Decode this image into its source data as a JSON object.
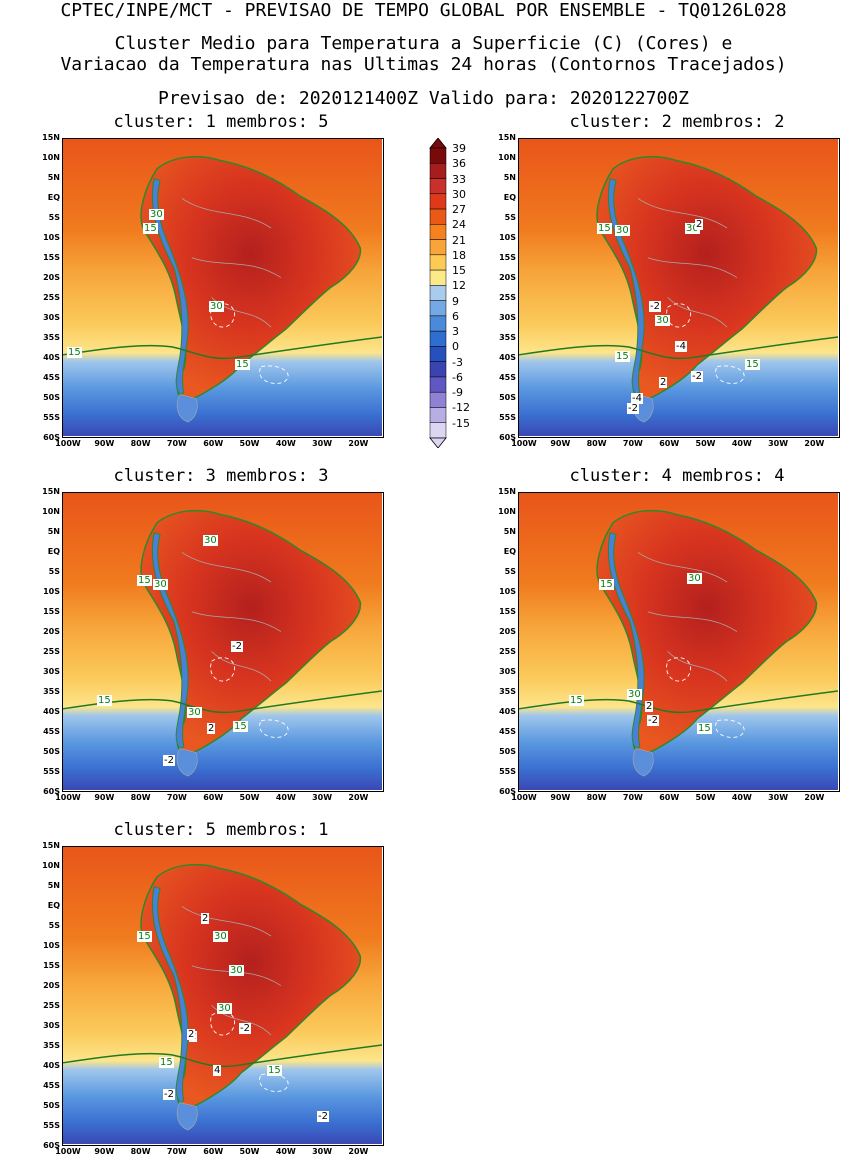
{
  "header": {
    "line1": "CPTEC/INPE/MCT - PREVISAO DE TEMPO GLOBAL POR ENSEMBLE - TQ0126L028",
    "line2": "Cluster Medio para Temperatura a Superficie (C) (Cores) e",
    "line3": "Variacao da Temperatura nas Ultimas 24 horas (Contornos Tracejados)",
    "line4": "Previsao de: 2020121400Z   Valido para: 2020122700Z"
  },
  "lat_ticks": [
    "15N",
    "10N",
    "5N",
    "EQ",
    "5S",
    "10S",
    "15S",
    "20S",
    "25S",
    "30S",
    "35S",
    "40S",
    "45S",
    "50S",
    "55S",
    "60S"
  ],
  "lon_ticks": [
    "100W",
    "90W",
    "80W",
    "70W",
    "60W",
    "50W",
    "40W",
    "30W",
    "20W"
  ],
  "colorbar": {
    "labels": [
      "39",
      "36",
      "33",
      "30",
      "27",
      "24",
      "21",
      "18",
      "15",
      "12",
      "9",
      "6",
      "3",
      "0",
      "-3",
      "-6",
      "-9",
      "-12",
      "-15"
    ],
    "colors": [
      "#7a0a0a",
      "#a51d1d",
      "#c9302c",
      "#de3a1a",
      "#ea5a16",
      "#f5821f",
      "#f9a43a",
      "#fcca55",
      "#fde88a",
      "#a9cbec",
      "#74a9e4",
      "#4a8ad9",
      "#2f6dcf",
      "#2650bd",
      "#3a44b0",
      "#6058c2",
      "#8f82d4",
      "#b7aee4",
      "#dcd6f2"
    ]
  },
  "panels": [
    {
      "title": "cluster: 1   membros: 5",
      "labels": [
        {
          "t": "30",
          "c": "g"
        },
        {
          "t": "15",
          "c": "g"
        },
        {
          "t": "30",
          "c": "g"
        },
        {
          "t": "15",
          "c": "g"
        },
        {
          "t": "15",
          "c": "g"
        }
      ]
    },
    {
      "title": "cluster: 2   membros: 2",
      "labels": [
        {
          "t": "15",
          "c": "g"
        },
        {
          "t": "30",
          "c": "g"
        },
        {
          "t": "30",
          "c": "g"
        },
        {
          "t": "2",
          "c": "k"
        },
        {
          "t": "-2",
          "c": "k"
        },
        {
          "t": "30",
          "c": "g"
        },
        {
          "t": "-4",
          "c": "k"
        },
        {
          "t": "15",
          "c": "g"
        },
        {
          "t": "15",
          "c": "g"
        },
        {
          "t": "-2",
          "c": "k"
        },
        {
          "t": "2",
          "c": "k"
        },
        {
          "t": "-4",
          "c": "k"
        },
        {
          "t": "-2",
          "c": "k"
        }
      ]
    },
    {
      "title": "cluster: 3   membros: 3",
      "labels": [
        {
          "t": "30",
          "c": "g"
        },
        {
          "t": "15",
          "c": "g"
        },
        {
          "t": "30",
          "c": "g"
        },
        {
          "t": "-2",
          "c": "k"
        },
        {
          "t": "15",
          "c": "g"
        },
        {
          "t": "2",
          "c": "k"
        },
        {
          "t": "30",
          "c": "g"
        },
        {
          "t": "15",
          "c": "g"
        },
        {
          "t": "-2",
          "c": "k"
        }
      ]
    },
    {
      "title": "cluster: 4   membros: 4",
      "labels": [
        {
          "t": "30",
          "c": "g"
        },
        {
          "t": "15",
          "c": "g"
        },
        {
          "t": "15",
          "c": "g"
        },
        {
          "t": "30",
          "c": "g"
        },
        {
          "t": "2",
          "c": "k"
        },
        {
          "t": "-2",
          "c": "k"
        },
        {
          "t": "15",
          "c": "g"
        }
      ]
    },
    {
      "title": "cluster: 5   membros: 1",
      "labels": [
        {
          "t": "2",
          "c": "k"
        },
        {
          "t": "15",
          "c": "g"
        },
        {
          "t": "30",
          "c": "g"
        },
        {
          "t": "30",
          "c": "g"
        },
        {
          "t": "2",
          "c": "k"
        },
        {
          "t": "30",
          "c": "g"
        },
        {
          "t": "2",
          "c": "k"
        },
        {
          "t": "-2",
          "c": "k"
        },
        {
          "t": "15",
          "c": "g"
        },
        {
          "t": "4",
          "c": "k"
        },
        {
          "t": "15",
          "c": "g"
        },
        {
          "t": "-2",
          "c": "k"
        },
        {
          "t": "-2",
          "c": "k"
        }
      ]
    }
  ]
}
